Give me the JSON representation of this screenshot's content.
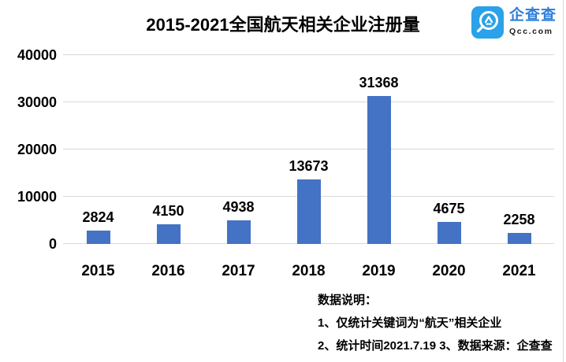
{
  "title": "2015-2021全国航天相关企业注册量",
  "logo": {
    "name": "企查查",
    "subtext": "Qcc.com",
    "icon_color": "#2AA1E9",
    "text_color": "#2E7DDA"
  },
  "chart_data": {
    "type": "bar",
    "title": "2015-2021全国航天相关企业注册量",
    "categories": [
      "2015",
      "2016",
      "2017",
      "2018",
      "2019",
      "2020",
      "2021"
    ],
    "values": [
      2824,
      4150,
      4938,
      13673,
      31368,
      4675,
      2258
    ],
    "xlabel": "",
    "ylabel": "",
    "ylim": [
      0,
      40000
    ],
    "yticks": [
      0,
      10000,
      20000,
      30000,
      40000
    ],
    "grid": true,
    "legend": false,
    "data_labels": true,
    "bar_color": "#4472C4",
    "grid_color": "#D9D9D9",
    "label_color": "#000000"
  },
  "notes": {
    "heading": "数据说明：",
    "line1": "1、仅统计关键词为“航天”相关企业",
    "line2": "2、统计时间2021.7.19 3、数据来源：企查查"
  }
}
